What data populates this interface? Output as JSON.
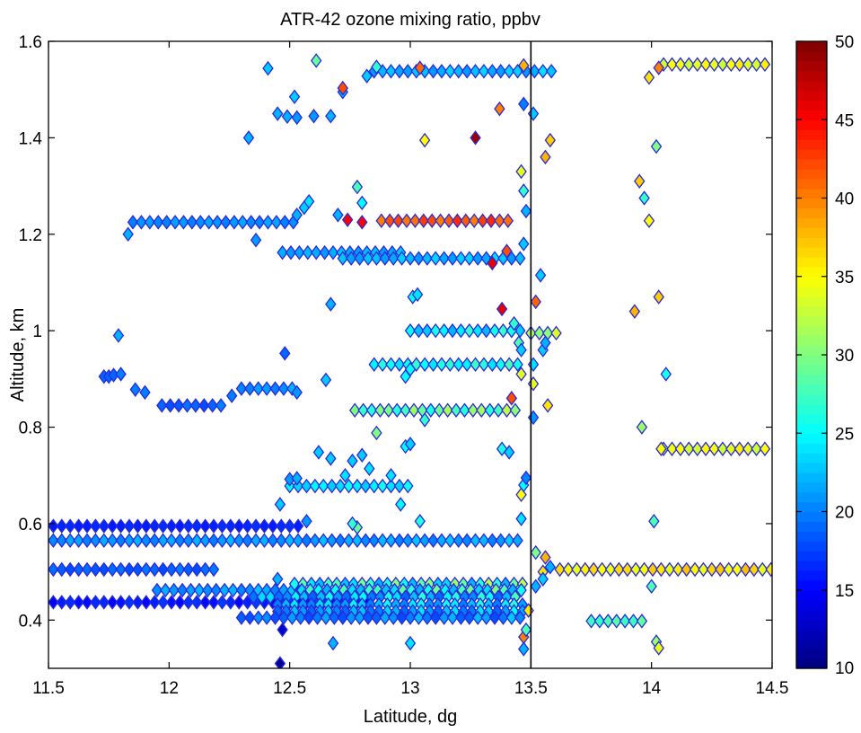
{
  "chart_data": {
    "type": "scatter",
    "title": "ATR-42 ozone mixing ratio, ppbv",
    "xlabel": "Latitude, dg",
    "ylabel": "Altitude, km",
    "xlim": [
      11.5,
      14.5
    ],
    "ylim": [
      0.3,
      1.6
    ],
    "xticks": [
      "11.5",
      "12",
      "12.5",
      "13",
      "13.5",
      "14",
      "14.5"
    ],
    "yticks": [
      "0.4",
      "0.6",
      "0.8",
      "1",
      "1.2",
      "1.4",
      "1.6"
    ],
    "grid": false,
    "marker": "diamond",
    "vertical_line_x": 13.5,
    "colormap": "jet",
    "colorbar": {
      "range": [
        10,
        50
      ],
      "ticks": [
        "15",
        "20",
        "25",
        "30",
        "35",
        "40",
        "45",
        "50"
      ],
      "bottom_label": "10"
    },
    "runs": [
      {
        "y": 0.595,
        "x0": 11.52,
        "x1": 12.55,
        "step": 0.035,
        "c": [
          16,
          17
        ]
      },
      {
        "y": 0.565,
        "x0": 11.52,
        "x1": 13.45,
        "step": 0.035,
        "c": [
          20,
          23
        ]
      },
      {
        "y": 0.505,
        "x0": 11.52,
        "x1": 12.2,
        "step": 0.035,
        "c": [
          18,
          20
        ]
      },
      {
        "y": 0.505,
        "x0": 13.62,
        "x1": 14.48,
        "step": 0.035,
        "c": [
          34,
          38
        ]
      },
      {
        "y": 0.437,
        "x0": 11.52,
        "x1": 12.8,
        "step": 0.035,
        "c": [
          15,
          18
        ]
      },
      {
        "y": 0.462,
        "x0": 11.95,
        "x1": 12.55,
        "step": 0.035,
        "c": [
          20,
          23
        ]
      },
      {
        "y": 0.475,
        "x0": 12.52,
        "x1": 13.45,
        "step": 0.035,
        "c": [
          22,
          33
        ]
      },
      {
        "y": 0.462,
        "x0": 12.55,
        "x1": 13.45,
        "step": 0.035,
        "c": [
          22,
          31
        ]
      },
      {
        "y": 0.448,
        "x0": 12.35,
        "x1": 13.45,
        "step": 0.035,
        "c": [
          19,
          28
        ]
      },
      {
        "y": 0.432,
        "x0": 12.45,
        "x1": 13.45,
        "step": 0.035,
        "c": [
          20,
          27
        ]
      },
      {
        "y": 0.418,
        "x0": 12.45,
        "x1": 13.45,
        "step": 0.035,
        "c": [
          19,
          25
        ]
      },
      {
        "y": 0.405,
        "x0": 12.3,
        "x1": 13.45,
        "step": 0.035,
        "c": [
          18,
          23
        ]
      },
      {
        "y": 0.398,
        "x0": 13.75,
        "x1": 13.95,
        "step": 0.035,
        "c": [
          27,
          29
        ]
      },
      {
        "y": 1.225,
        "x0": 11.85,
        "x1": 12.5,
        "step": 0.035,
        "c": [
          20,
          22
        ]
      },
      {
        "y": 1.228,
        "x0": 12.88,
        "x1": 13.4,
        "step": 0.035,
        "c": [
          40,
          44
        ]
      },
      {
        "y": 1.162,
        "x0": 12.47,
        "x1": 12.95,
        "step": 0.035,
        "c": [
          21,
          23
        ]
      },
      {
        "y": 1.15,
        "x0": 12.72,
        "x1": 13.45,
        "step": 0.035,
        "c": [
          21,
          24
        ]
      },
      {
        "y": 1.538,
        "x0": 12.85,
        "x1": 13.6,
        "step": 0.035,
        "c": [
          21,
          24
        ]
      },
      {
        "y": 1.552,
        "x0": 14.05,
        "x1": 14.48,
        "step": 0.035,
        "c": [
          33,
          36
        ]
      },
      {
        "y": 0.845,
        "x0": 11.97,
        "x1": 12.22,
        "step": 0.035,
        "c": [
          18,
          20
        ]
      },
      {
        "y": 0.88,
        "x0": 12.3,
        "x1": 12.5,
        "step": 0.035,
        "c": [
          20,
          22
        ]
      },
      {
        "y": 0.93,
        "x0": 12.85,
        "x1": 13.45,
        "step": 0.035,
        "c": [
          24,
          28
        ]
      },
      {
        "y": 0.835,
        "x0": 12.77,
        "x1": 13.45,
        "step": 0.035,
        "c": [
          26,
          33
        ]
      },
      {
        "y": 1.0,
        "x0": 13.0,
        "x1": 13.45,
        "step": 0.035,
        "c": [
          22,
          28
        ]
      },
      {
        "y": 0.995,
        "x0": 13.5,
        "x1": 13.6,
        "step": 0.035,
        "c": [
          30,
          34
        ]
      },
      {
        "y": 0.678,
        "x0": 12.5,
        "x1": 12.98,
        "step": 0.035,
        "c": [
          23,
          26
        ]
      },
      {
        "y": 0.755,
        "x0": 14.05,
        "x1": 14.48,
        "step": 0.035,
        "c": [
          33,
          36
        ]
      }
    ],
    "points": [
      {
        "x": 11.73,
        "y": 0.905,
        "c": 19
      },
      {
        "x": 11.75,
        "y": 0.905,
        "c": 19
      },
      {
        "x": 11.77,
        "y": 0.908,
        "c": 19
      },
      {
        "x": 11.8,
        "y": 0.91,
        "c": 20
      },
      {
        "x": 11.86,
        "y": 0.878,
        "c": 20
      },
      {
        "x": 11.9,
        "y": 0.872,
        "c": 20
      },
      {
        "x": 11.79,
        "y": 0.99,
        "c": 22
      },
      {
        "x": 11.83,
        "y": 1.2,
        "c": 22
      },
      {
        "x": 12.26,
        "y": 0.865,
        "c": 20
      },
      {
        "x": 12.53,
        "y": 0.872,
        "c": 21
      },
      {
        "x": 12.33,
        "y": 1.4,
        "c": 22
      },
      {
        "x": 12.36,
        "y": 1.188,
        "c": 21
      },
      {
        "x": 12.41,
        "y": 1.544,
        "c": 23
      },
      {
        "x": 12.45,
        "y": 1.45,
        "c": 22
      },
      {
        "x": 12.49,
        "y": 1.444,
        "c": 22
      },
      {
        "x": 12.53,
        "y": 1.442,
        "c": 21
      },
      {
        "x": 12.52,
        "y": 1.485,
        "c": 23
      },
      {
        "x": 12.53,
        "y": 1.24,
        "c": 22
      },
      {
        "x": 12.56,
        "y": 1.255,
        "c": 23
      },
      {
        "x": 12.58,
        "y": 1.268,
        "c": 24
      },
      {
        "x": 12.6,
        "y": 1.445,
        "c": 21
      },
      {
        "x": 12.61,
        "y": 1.56,
        "c": 29
      },
      {
        "x": 12.67,
        "y": 1.445,
        "c": 22
      },
      {
        "x": 12.7,
        "y": 1.24,
        "c": 22
      },
      {
        "x": 12.72,
        "y": 1.495,
        "c": 22
      },
      {
        "x": 12.72,
        "y": 1.503,
        "c": 42
      },
      {
        "x": 12.74,
        "y": 1.23,
        "c": 45
      },
      {
        "x": 12.78,
        "y": 1.298,
        "c": 28
      },
      {
        "x": 12.8,
        "y": 1.265,
        "c": 25
      },
      {
        "x": 12.82,
        "y": 1.528,
        "c": 23
      },
      {
        "x": 12.86,
        "y": 1.547,
        "c": 27
      },
      {
        "x": 12.8,
        "y": 1.225,
        "c": 45
      },
      {
        "x": 13.04,
        "y": 1.545,
        "c": 41
      },
      {
        "x": 13.06,
        "y": 1.395,
        "c": 35
      },
      {
        "x": 13.27,
        "y": 1.4,
        "c": 49
      },
      {
        "x": 13.37,
        "y": 1.46,
        "c": 40
      },
      {
        "x": 13.4,
        "y": 1.165,
        "c": 42
      },
      {
        "x": 13.34,
        "y": 1.14,
        "c": 46
      },
      {
        "x": 13.38,
        "y": 1.045,
        "c": 46
      },
      {
        "x": 13.42,
        "y": 0.86,
        "c": 42
      },
      {
        "x": 12.48,
        "y": 0.953,
        "c": 19
      },
      {
        "x": 12.65,
        "y": 0.898,
        "c": 23
      },
      {
        "x": 12.67,
        "y": 1.055,
        "c": 22
      },
      {
        "x": 12.62,
        "y": 0.748,
        "c": 23
      },
      {
        "x": 12.67,
        "y": 0.735,
        "c": 23
      },
      {
        "x": 12.8,
        "y": 0.742,
        "c": 23
      },
      {
        "x": 12.76,
        "y": 0.73,
        "c": 23
      },
      {
        "x": 12.86,
        "y": 0.788,
        "c": 30
      },
      {
        "x": 12.98,
        "y": 0.76,
        "c": 25
      },
      {
        "x": 13.0,
        "y": 0.765,
        "c": 23
      },
      {
        "x": 13.01,
        "y": 1.07,
        "c": 25
      },
      {
        "x": 13.03,
        "y": 1.075,
        "c": 24
      },
      {
        "x": 13.0,
        "y": 0.92,
        "c": 25
      },
      {
        "x": 12.98,
        "y": 0.905,
        "c": 25
      },
      {
        "x": 13.06,
        "y": 0.815,
        "c": 27
      },
      {
        "x": 12.46,
        "y": 0.64,
        "c": 23
      },
      {
        "x": 12.5,
        "y": 0.692,
        "c": 21
      },
      {
        "x": 12.53,
        "y": 0.694,
        "c": 22
      },
      {
        "x": 12.73,
        "y": 0.7,
        "c": 24
      },
      {
        "x": 12.83,
        "y": 0.714,
        "c": 24
      },
      {
        "x": 12.92,
        "y": 0.7,
        "c": 24
      },
      {
        "x": 12.96,
        "y": 0.64,
        "c": 25
      },
      {
        "x": 12.78,
        "y": 0.592,
        "c": 29
      },
      {
        "x": 12.76,
        "y": 0.6,
        "c": 27
      },
      {
        "x": 13.04,
        "y": 0.605,
        "c": 26
      },
      {
        "x": 12.57,
        "y": 0.605,
        "c": 21
      },
      {
        "x": 12.47,
        "y": 0.38,
        "c": 13
      },
      {
        "x": 12.46,
        "y": 0.31,
        "c": 11
      },
      {
        "x": 12.68,
        "y": 0.352,
        "c": 22
      },
      {
        "x": 13.0,
        "y": 0.352,
        "c": 24
      },
      {
        "x": 12.45,
        "y": 0.485,
        "c": 22
      },
      {
        "x": 13.38,
        "y": 0.755,
        "c": 26
      },
      {
        "x": 13.41,
        "y": 0.748,
        "c": 23
      },
      {
        "x": 13.42,
        "y": 1.0,
        "c": 26
      },
      {
        "x": 13.43,
        "y": 1.015,
        "c": 27
      },
      {
        "x": 13.45,
        "y": 0.975,
        "c": 28
      },
      {
        "x": 13.46,
        "y": 0.96,
        "c": 23
      },
      {
        "x": 13.47,
        "y": 1.55,
        "c": 38
      },
      {
        "x": 13.47,
        "y": 1.47,
        "c": 20
      },
      {
        "x": 13.46,
        "y": 1.33,
        "c": 34
      },
      {
        "x": 13.47,
        "y": 1.29,
        "c": 27
      },
      {
        "x": 13.48,
        "y": 1.248,
        "c": 22
      },
      {
        "x": 13.47,
        "y": 1.18,
        "c": 23
      },
      {
        "x": 13.46,
        "y": 0.91,
        "c": 34
      },
      {
        "x": 13.46,
        "y": 0.66,
        "c": 35
      },
      {
        "x": 13.47,
        "y": 0.68,
        "c": 25
      },
      {
        "x": 13.48,
        "y": 0.695,
        "c": 20
      },
      {
        "x": 13.46,
        "y": 0.61,
        "c": 24
      },
      {
        "x": 13.47,
        "y": 0.365,
        "c": 40
      },
      {
        "x": 13.47,
        "y": 0.34,
        "c": 22
      },
      {
        "x": 13.48,
        "y": 0.38,
        "c": 28
      },
      {
        "x": 13.49,
        "y": 0.42,
        "c": 36
      },
      {
        "x": 13.51,
        "y": 1.45,
        "c": 23
      },
      {
        "x": 13.52,
        "y": 1.06,
        "c": 41
      },
      {
        "x": 13.51,
        "y": 0.93,
        "c": 24
      },
      {
        "x": 13.51,
        "y": 0.89,
        "c": 34
      },
      {
        "x": 13.51,
        "y": 0.82,
        "c": 21
      },
      {
        "x": 13.52,
        "y": 0.54,
        "c": 30
      },
      {
        "x": 13.54,
        "y": 1.115,
        "c": 23
      },
      {
        "x": 13.55,
        "y": 0.96,
        "c": 23
      },
      {
        "x": 13.56,
        "y": 1.36,
        "c": 38
      },
      {
        "x": 13.58,
        "y": 1.395,
        "c": 37
      },
      {
        "x": 13.56,
        "y": 0.975,
        "c": 22
      },
      {
        "x": 13.57,
        "y": 0.845,
        "c": 36
      },
      {
        "x": 13.56,
        "y": 0.53,
        "c": 38
      },
      {
        "x": 13.58,
        "y": 0.51,
        "c": 22
      },
      {
        "x": 13.55,
        "y": 0.5,
        "c": 36
      },
      {
        "x": 13.55,
        "y": 0.485,
        "c": 23
      },
      {
        "x": 13.52,
        "y": 0.47,
        "c": 22
      },
      {
        "x": 13.93,
        "y": 1.04,
        "c": 38
      },
      {
        "x": 13.95,
        "y": 1.31,
        "c": 37
      },
      {
        "x": 13.97,
        "y": 1.275,
        "c": 27
      },
      {
        "x": 13.99,
        "y": 1.228,
        "c": 35
      },
      {
        "x": 13.99,
        "y": 1.525,
        "c": 36
      },
      {
        "x": 14.02,
        "y": 1.382,
        "c": 30
      },
      {
        "x": 14.03,
        "y": 1.07,
        "c": 37
      },
      {
        "x": 14.06,
        "y": 0.91,
        "c": 26
      },
      {
        "x": 13.96,
        "y": 0.8,
        "c": 31
      },
      {
        "x": 14.01,
        "y": 0.605,
        "c": 28
      },
      {
        "x": 14.0,
        "y": 0.47,
        "c": 28
      },
      {
        "x": 14.02,
        "y": 0.355,
        "c": 31
      },
      {
        "x": 14.03,
        "y": 0.342,
        "c": 34
      },
      {
        "x": 14.03,
        "y": 1.545,
        "c": 40
      },
      {
        "x": 14.04,
        "y": 0.755,
        "c": 35
      }
    ]
  }
}
